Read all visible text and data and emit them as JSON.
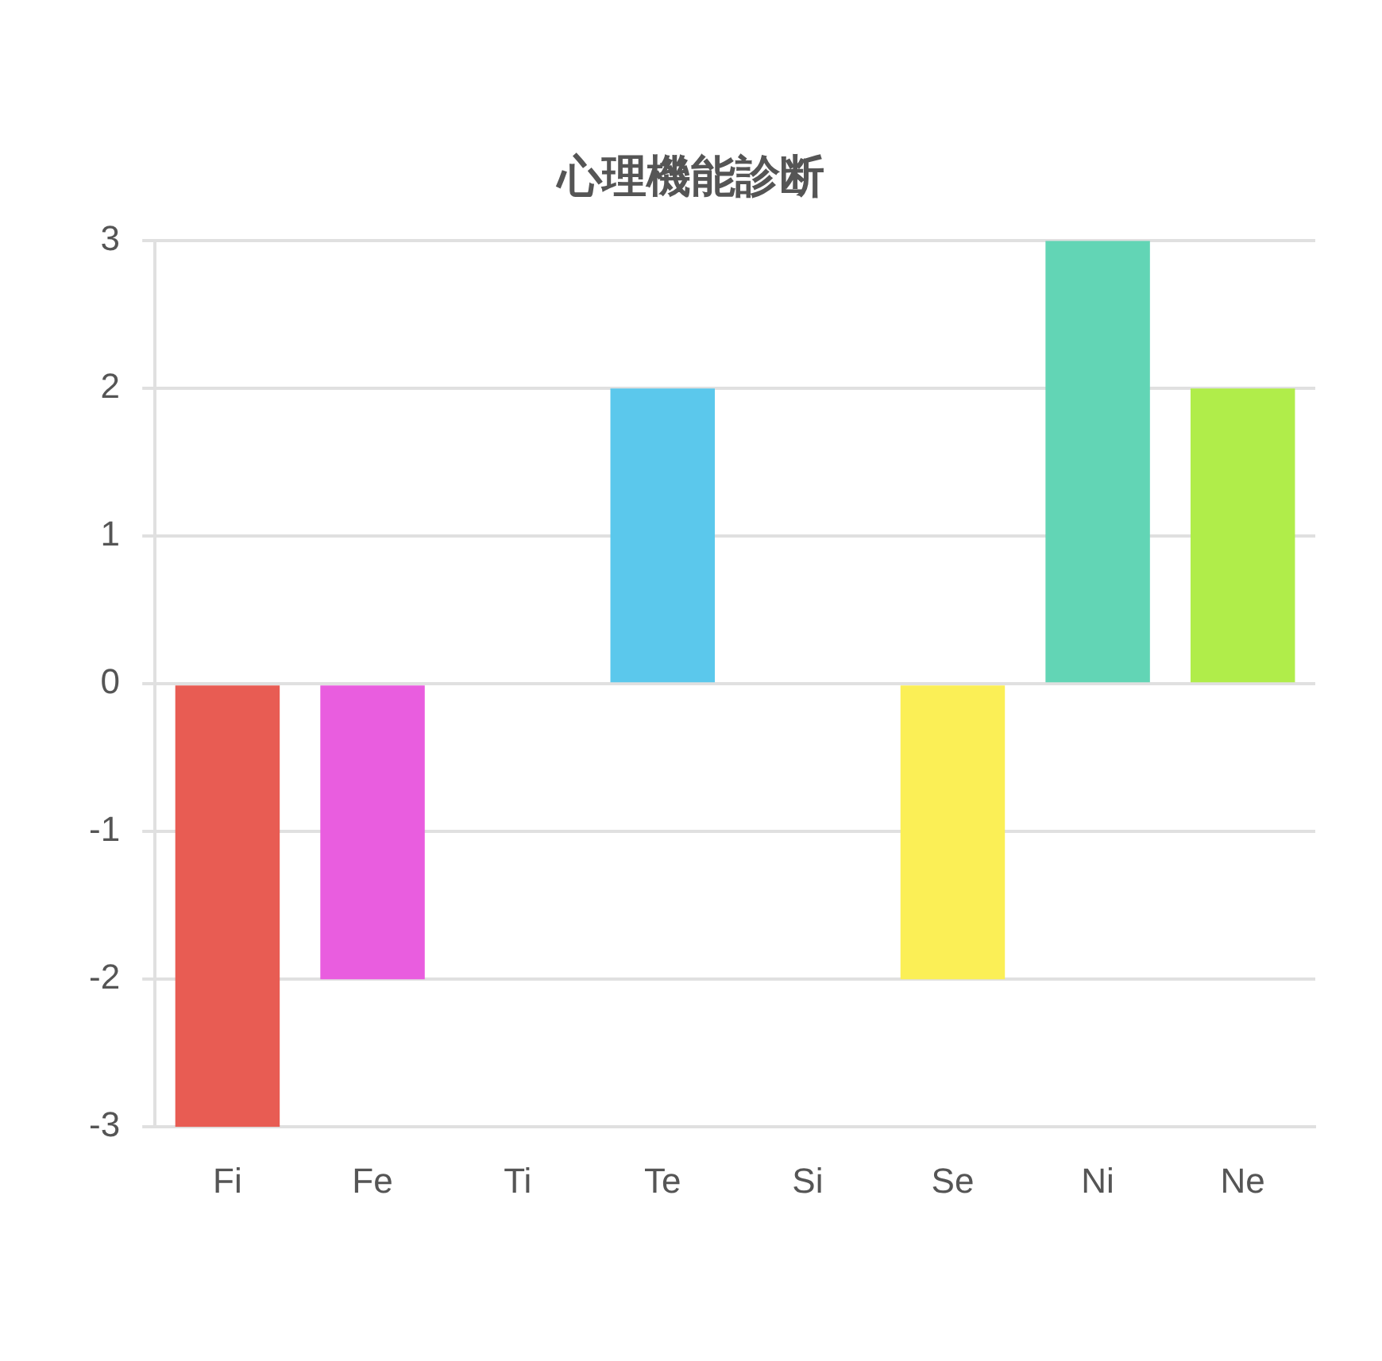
{
  "chart_data": {
    "type": "bar",
    "title": "心理機能診断",
    "categories": [
      "Fi",
      "Fe",
      "Ti",
      "Te",
      "Si",
      "Se",
      "Ni",
      "Ne"
    ],
    "values": [
      -3,
      -2,
      0,
      2,
      0,
      -2,
      3,
      2
    ],
    "colors": [
      "#e85c53",
      "#e95ddf",
      "#9a9a9a",
      "#5bc8ec",
      "#c9c9c9",
      "#fbef56",
      "#62d5b5",
      "#b0ed4a"
    ],
    "ylim": [
      -3,
      3
    ],
    "yticks": [
      -3,
      -2,
      -1,
      0,
      1,
      2,
      3
    ],
    "grid": "y",
    "legend": false
  }
}
